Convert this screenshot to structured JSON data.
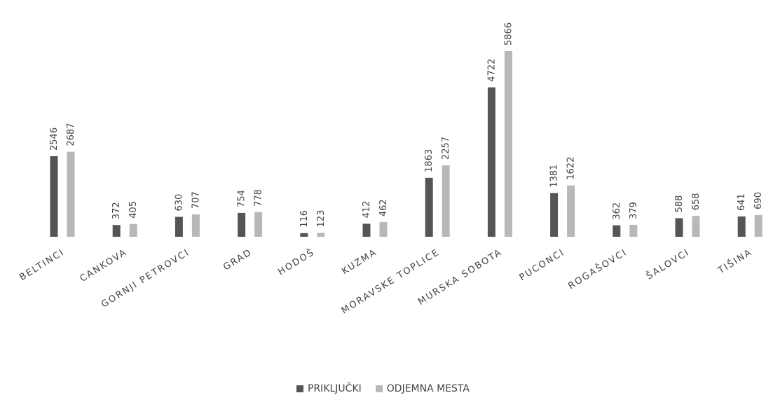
{
  "chart_data": {
    "type": "bar",
    "categories": [
      "BELTINCI",
      "CANKOVA",
      "GORNJI PETROVCI",
      "GRAD",
      "HODOŠ",
      "KUZMA",
      "MORAVSKE TOPLICE",
      "MURSKA SOBOTA",
      "PUCONCI",
      "ROGAŠOVCI",
      "ŠALOVCI",
      "TIŠINA"
    ],
    "series": [
      {
        "name": "PRIKLJUČKI",
        "values": [
          2546,
          372,
          630,
          754,
          116,
          412,
          1863,
          4722,
          1381,
          362,
          588,
          641
        ],
        "color": "#555555"
      },
      {
        "name": "ODJEMNA MESTA",
        "values": [
          2687,
          405,
          707,
          778,
          123,
          462,
          2257,
          5866,
          1622,
          379,
          658,
          690
        ],
        "color": "#b8b8b8"
      }
    ],
    "ylim": [
      0,
      5866
    ],
    "grid": false,
    "data_labels": true,
    "legend_position": "bottom",
    "title": "",
    "xlabel": "",
    "ylabel": ""
  }
}
